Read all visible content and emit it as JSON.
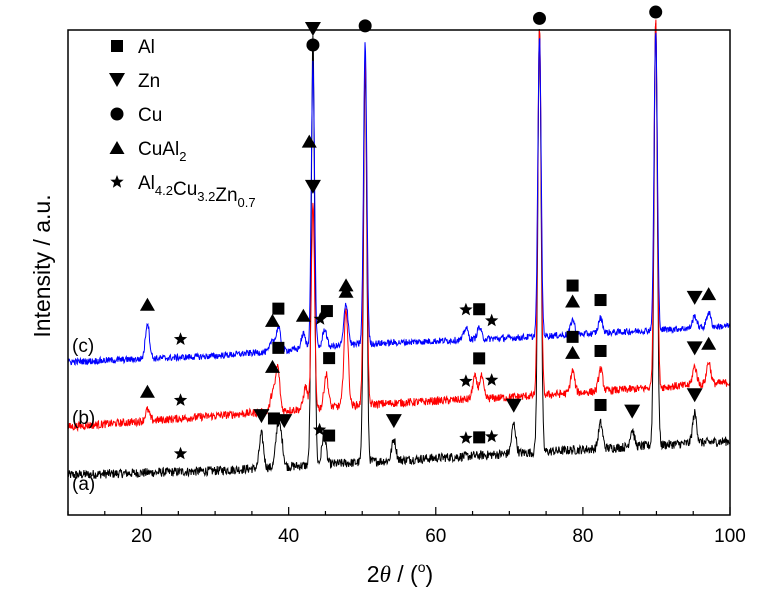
{
  "chart_data": {
    "type": "line",
    "xlabel_main": "2",
    "xlabel_theta": "θ",
    "xlabel_rest": " / (",
    "xlabel_deg": "o",
    "xlabel_close": ")",
    "ylabel": "Intensity / a.u.",
    "xlim": [
      10,
      100
    ],
    "xticks": [
      20,
      40,
      60,
      80,
      100
    ],
    "y_ticks_shown": false,
    "grid": false,
    "legend_position": "top-left",
    "legend": [
      {
        "symbol": "square",
        "label": "Al",
        "sub": []
      },
      {
        "symbol": "triangle-down",
        "label": "Zn",
        "sub": []
      },
      {
        "symbol": "circle",
        "label": "Cu",
        "sub": []
      },
      {
        "symbol": "triangle-up",
        "label": "CuAl",
        "sub": [
          "2"
        ]
      },
      {
        "symbol": "star",
        "label": "Al",
        "parts": [
          [
            "Al",
            "4.2"
          ],
          [
            "Cu",
            "3.2"
          ],
          [
            "Zn",
            "0.7"
          ]
        ]
      }
    ],
    "series": [
      {
        "name": "(a)",
        "color": "#000000",
        "baseline": [
          [
            10,
            0.04
          ],
          [
            30,
            0.05
          ],
          [
            50,
            0.07
          ],
          [
            70,
            0.09
          ],
          [
            100,
            0.12
          ]
        ],
        "peaks": [
          [
            36.3,
            0.08
          ],
          [
            38.5,
            0.09
          ],
          [
            39.0,
            0.06
          ],
          [
            43.3,
            1.0
          ],
          [
            44.8,
            0.07
          ],
          [
            50.4,
            0.93
          ],
          [
            54.3,
            0.05
          ],
          [
            70.6,
            0.07
          ],
          [
            74.1,
            1.0
          ],
          [
            82.4,
            0.06
          ],
          [
            86.7,
            0.04
          ],
          [
            89.9,
            1.0
          ],
          [
            95.2,
            0.07
          ]
        ],
        "markers": [
          {
            "x": 25.3,
            "s": "star"
          },
          {
            "x": 36.3,
            "s": "triangle-down"
          },
          {
            "x": 38.0,
            "s": "square"
          },
          {
            "x": 39.4,
            "s": "triangle-down"
          },
          {
            "x": 44.2,
            "s": "star"
          },
          {
            "x": 45.5,
            "s": "square"
          },
          {
            "x": 54.3,
            "s": "triangle-down"
          },
          {
            "x": 64.1,
            "s": "star"
          },
          {
            "x": 65.9,
            "s": "square"
          },
          {
            "x": 67.6,
            "s": "star"
          },
          {
            "x": 70.6,
            "s": "triangle-down"
          },
          {
            "x": 82.4,
            "s": "square"
          },
          {
            "x": 86.7,
            "s": "triangle-down"
          },
          {
            "x": 95.2,
            "s": "triangle-down"
          }
        ]
      },
      {
        "name": "(b)",
        "color": "#ff0000",
        "baseline": [
          [
            10,
            0.03
          ],
          [
            30,
            0.06
          ],
          [
            50,
            0.09
          ],
          [
            70,
            0.11
          ],
          [
            100,
            0.15
          ]
        ],
        "peaks": [
          [
            20.8,
            0.03
          ],
          [
            37.8,
            0.05
          ],
          [
            38.5,
            0.12
          ],
          [
            42.3,
            0.06
          ],
          [
            43.3,
            0.55
          ],
          [
            45.1,
            0.09
          ],
          [
            47.8,
            0.26
          ],
          [
            50.4,
            0.93
          ],
          [
            65.3,
            0.06
          ],
          [
            66.2,
            0.06
          ],
          [
            74.1,
            1.0
          ],
          [
            78.6,
            0.06
          ],
          [
            82.4,
            0.06
          ],
          [
            89.9,
            1.0
          ],
          [
            95.2,
            0.05
          ],
          [
            97.1,
            0.06
          ]
        ],
        "markers": [
          {
            "x": 20.8,
            "s": "triangle-up"
          },
          {
            "x": 25.3,
            "s": "star"
          },
          {
            "x": 37.8,
            "s": "triangle-up"
          },
          {
            "x": 38.6,
            "s": "square"
          },
          {
            "x": 43.3,
            "s": "triangle-down"
          },
          {
            "x": 45.5,
            "s": "square"
          },
          {
            "x": 47.8,
            "s": "triangle-up"
          },
          {
            "x": 64.1,
            "s": "star"
          },
          {
            "x": 65.9,
            "s": "square"
          },
          {
            "x": 67.6,
            "s": "star"
          },
          {
            "x": 78.6,
            "s": "triangle-up"
          },
          {
            "x": 78.6,
            "s": "square"
          },
          {
            "x": 82.4,
            "s": "square"
          },
          {
            "x": 95.2,
            "s": "triangle-down"
          },
          {
            "x": 97.1,
            "s": "triangle-up"
          }
        ]
      },
      {
        "name": "(c)",
        "color": "#0000ff",
        "baseline": [
          [
            10,
            0.02
          ],
          [
            30,
            0.04
          ],
          [
            50,
            0.08
          ],
          [
            70,
            0.1
          ],
          [
            100,
            0.14
          ]
        ],
        "peaks": [
          [
            20.8,
            0.12
          ],
          [
            37.8,
            0.04
          ],
          [
            38.6,
            0.08
          ],
          [
            42.0,
            0.05
          ],
          [
            43.3,
            0.95
          ],
          [
            44.9,
            0.06
          ],
          [
            47.8,
            0.14
          ],
          [
            50.4,
            1.0
          ],
          [
            64.1,
            0.04
          ],
          [
            65.9,
            0.04
          ],
          [
            74.1,
            1.0
          ],
          [
            78.6,
            0.05
          ],
          [
            82.4,
            0.05
          ],
          [
            89.9,
            1.0
          ],
          [
            95.2,
            0.04
          ],
          [
            97.1,
            0.05
          ]
        ],
        "markers": [
          {
            "x": 20.8,
            "s": "triangle-up"
          },
          {
            "x": 25.3,
            "s": "star"
          },
          {
            "x": 37.8,
            "s": "triangle-up"
          },
          {
            "x": 38.6,
            "s": "square"
          },
          {
            "x": 42.0,
            "s": "triangle-up"
          },
          {
            "x": 43.3,
            "s": "circle"
          },
          {
            "x": 43.3,
            "s": "triangle-down"
          },
          {
            "x": 42.8,
            "s": "triangle-up"
          },
          {
            "x": 44.3,
            "s": "star"
          },
          {
            "x": 45.2,
            "s": "square"
          },
          {
            "x": 47.8,
            "s": "triangle-up"
          },
          {
            "x": 50.4,
            "s": "circle"
          },
          {
            "x": 64.1,
            "s": "star"
          },
          {
            "x": 65.9,
            "s": "square"
          },
          {
            "x": 67.6,
            "s": "star"
          },
          {
            "x": 74.1,
            "s": "circle"
          },
          {
            "x": 78.6,
            "s": "triangle-up"
          },
          {
            "x": 78.6,
            "s": "square"
          },
          {
            "x": 82.4,
            "s": "square"
          },
          {
            "x": 89.9,
            "s": "circle"
          },
          {
            "x": 95.2,
            "s": "triangle-down"
          },
          {
            "x": 97.1,
            "s": "triangle-up"
          }
        ]
      }
    ]
  }
}
